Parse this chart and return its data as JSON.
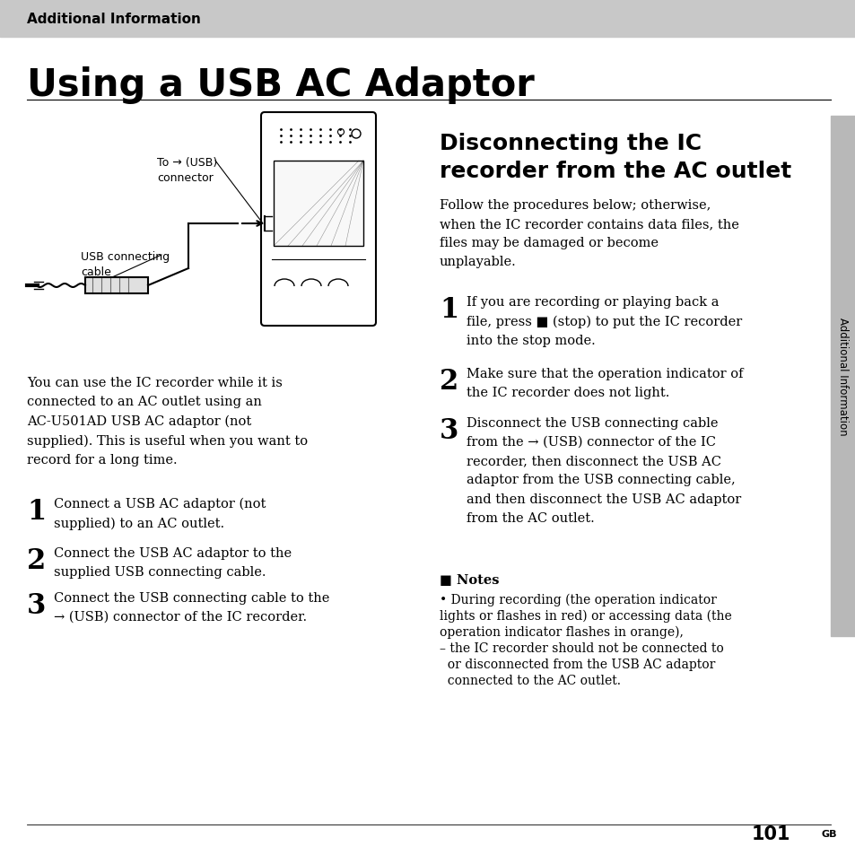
{
  "bg_color": "#ffffff",
  "header_bg": "#c8c8c8",
  "header_text": "Additional Information",
  "page_title": "Using a USB AC Adaptor",
  "sidebar_bg": "#b8b8b8",
  "sidebar_text": "Additional Information",
  "page_number": "101",
  "page_number_suffix": "GB",
  "left_body_text": "You can use the IC recorder while it is\nconnected to an AC outlet using an\nAC-U501AD USB AC adaptor (not\nsupplied). This is useful when you want to\nrecord for a long time.",
  "left_steps": [
    {
      "num": "1",
      "text": "Connect a USB AC adaptor (not\nsupplied) to an AC outlet."
    },
    {
      "num": "2",
      "text": "Connect the USB AC adaptor to the\nsupplied USB connecting cable."
    },
    {
      "num": "3",
      "text": "Connect the USB connecting cable to the\n→ (USB) connector of the IC recorder."
    }
  ],
  "right_title": "Disconnecting the IC\nrecorder from the AC outlet",
  "right_intro": "Follow the procedures below; otherwise,\nwhen the IC recorder contains data files, the\nfiles may be damaged or become\nunplayable.",
  "right_steps": [
    {
      "num": "1",
      "text": "If you are recording or playing back a\nfile, press ■ (stop) to put the IC recorder\ninto the stop mode."
    },
    {
      "num": "2",
      "text": "Make sure that the operation indicator of\nthe IC recorder does not light."
    },
    {
      "num": "3",
      "text": "Disconnect the USB connecting cable\nfrom the → (USB) connector of the IC\nrecorder, then disconnect the USB AC\nadaptor from the USB connecting cable,\nand then disconnect the USB AC adaptor\nfrom the AC outlet."
    }
  ],
  "notes_header": "■ Notes",
  "notes_line1": "• During recording (the operation indicator",
  "notes_line2": "lights or flashes in red) or accessing data (the",
  "notes_line3": "operation indicator flashes in orange),",
  "notes_line4": "– the IC recorder should not be connected to",
  "notes_line5": "  or disconnected from the USB AC adaptor",
  "notes_line6": "  connected to the AC outlet.",
  "label_usb": "To → (USB)\nconnector",
  "label_cable": "USB connecting\ncable"
}
